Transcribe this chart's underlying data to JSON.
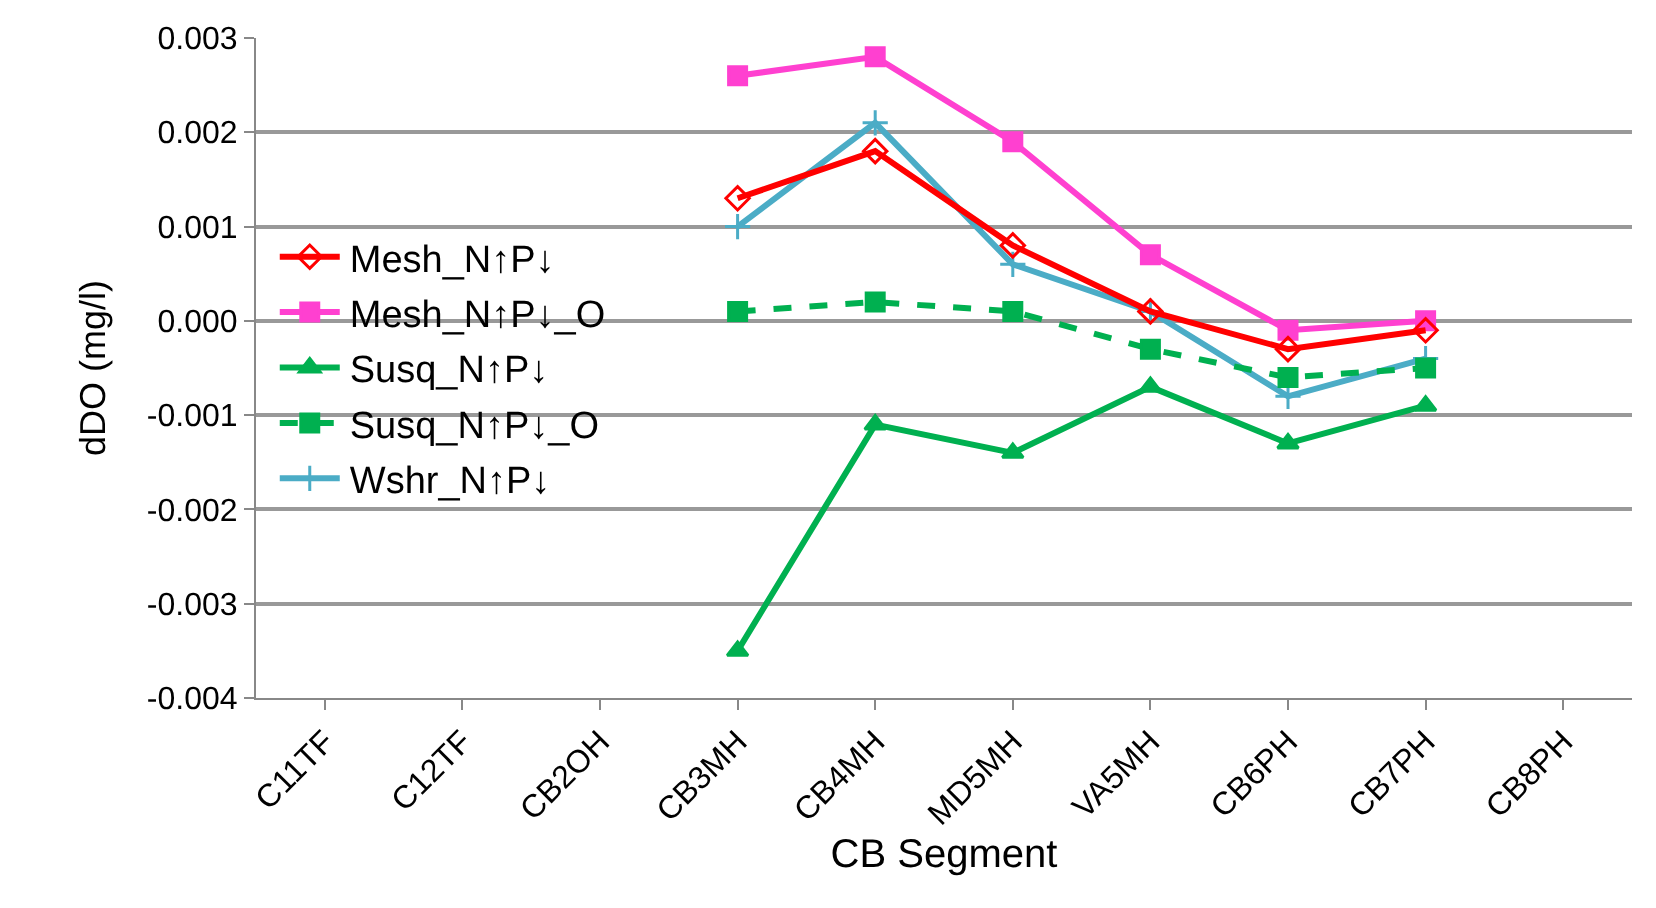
{
  "chart_data": {
    "type": "line",
    "xlabel": "CB Segment",
    "ylabel": "dDO (mg/l)",
    "categories": [
      "C11TF",
      "C12TF",
      "CB2OH",
      "CB3MH",
      "CB4MH",
      "MD5MH",
      "VA5MH",
      "CB6PH",
      "CB7PH",
      "CB8PH"
    ],
    "series": [
      {
        "name": "Mesh_N↑P↓",
        "color": "#ff0000",
        "marker": "diamond",
        "line_style": "solid",
        "values": [
          null,
          null,
          null,
          0.0013,
          0.0018,
          0.0008,
          0.0001,
          -0.0003,
          -0.0001,
          null
        ]
      },
      {
        "name": "Mesh_N↑P↓_O",
        "color": "#ff40d0",
        "marker": "square",
        "line_style": "solid",
        "values": [
          null,
          null,
          null,
          0.0026,
          0.0028,
          0.0019,
          0.0007,
          -0.0001,
          0.0,
          null
        ]
      },
      {
        "name": "Susq_N↑P↓",
        "color": "#00b050",
        "marker": "triangle",
        "line_style": "solid",
        "values": [
          null,
          null,
          null,
          -0.0035,
          -0.0011,
          -0.0014,
          -0.0007,
          -0.0013,
          -0.0009,
          null
        ]
      },
      {
        "name": "Susq_N↑P↓_O",
        "color": "#00b050",
        "marker": "square",
        "line_style": "dashed",
        "values": [
          null,
          null,
          null,
          0.0001,
          0.0002,
          0.0001,
          -0.0003,
          -0.0006,
          -0.0005,
          null
        ]
      },
      {
        "name": "Wshr_N↑P↓",
        "color": "#4bacc6",
        "marker": "cross",
        "line_style": "solid",
        "values": [
          null,
          null,
          null,
          0.001,
          0.0021,
          0.0006,
          0.0001,
          -0.0008,
          -0.0004,
          null
        ]
      }
    ],
    "ylim": [
      -0.004,
      0.003
    ],
    "yticks": [
      {
        "value": -0.004,
        "label": "-0.004"
      },
      {
        "value": -0.003,
        "label": "-0.003"
      },
      {
        "value": -0.002,
        "label": "-0.002"
      },
      {
        "value": -0.001,
        "label": "-0.001"
      },
      {
        "value": 0,
        "label": "0.000"
      },
      {
        "value": 0.001,
        "label": "0.001"
      },
      {
        "value": 0.002,
        "label": "0.002"
      },
      {
        "value": 0.003,
        "label": "0.003"
      }
    ],
    "grid": "y",
    "legend": "left"
  }
}
